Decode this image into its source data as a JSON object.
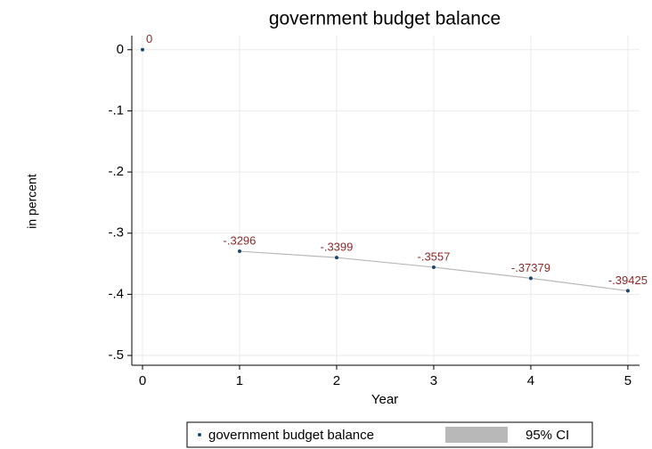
{
  "chart_data": {
    "type": "scatter",
    "title": "government budget balance",
    "x_label": "Year",
    "y_label": "in percent",
    "x": [
      0,
      1,
      2,
      3,
      4,
      5
    ],
    "series": [
      {
        "name": "government budget balance",
        "color": "#1a476f",
        "values": [
          0,
          -0.3296,
          -0.3399,
          -0.3557,
          -0.37379,
          -0.39425
        ],
        "value_labels": [
          "0",
          "-.3296",
          "-.3399",
          "-.3557",
          "-.37379",
          "-.39425"
        ]
      },
      {
        "name": "95% CI",
        "color": "#b8b8b8",
        "values": [
          null,
          -0.3296,
          -0.3399,
          -0.3557,
          -0.37379,
          -0.39425
        ]
      }
    ],
    "xlim": [
      -0.11,
      5.12
    ],
    "ylim": [
      -0.516,
      0.023
    ],
    "xticks": [
      0,
      1,
      2,
      3,
      4,
      5
    ],
    "yticks": [
      0,
      {
        "value": -0.1,
        "label": "-.1"
      },
      {
        "value": -0.2,
        "label": "-.2"
      },
      {
        "value": -0.3,
        "label": "-.3"
      },
      {
        "value": -0.4,
        "label": "-.4"
      },
      {
        "value": -0.5,
        "label": "-.5"
      }
    ],
    "grid": true,
    "legend": "bottom"
  }
}
